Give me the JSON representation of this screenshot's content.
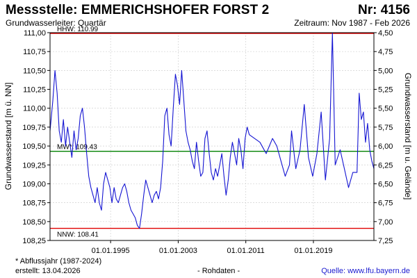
{
  "header": {
    "title": "Messstelle: EMMERICHSHOFER FORST 2",
    "nr": "Nr: 4156",
    "aquifer": "Grundwasserleiter: Quartär",
    "period": "Zeitraum: Nov 1987 - Feb 2026"
  },
  "footer": {
    "note": "* Abflussjahr (1987-2024)",
    "created": "erstellt:  13.04.2026",
    "raw": "- Rohdaten -",
    "source": "Quelle: www.lfu.bayern.de"
  },
  "colors": {
    "series": "#1414d2",
    "hhw": "#e00000",
    "mw": "#008000",
    "nnw": "#e00000",
    "grid": "#d0d0d0"
  },
  "chart_data": {
    "type": "line",
    "ylabel": "Grundwasserstand [m ü. NN]",
    "ylabel_right": "Grundwasserstand [m u. Gelände]",
    "ylim": [
      108.25,
      111.0
    ],
    "ylim_right": [
      7.25,
      4.5
    ],
    "xlim": [
      "1987-11-01",
      "2026-02-28"
    ],
    "grid": true,
    "yticks": [
      "108,25",
      "108,50",
      "108,75",
      "109,00",
      "109,25",
      "109,50",
      "109,75",
      "110,00",
      "110,25",
      "110,50",
      "110,75",
      "111,00"
    ],
    "yticks_right": [
      "4,50",
      "4,75",
      "5,00",
      "5,25",
      "5,50",
      "5,75",
      "6,00",
      "6,25",
      "6,50",
      "6,75",
      "7,00",
      "7,25"
    ],
    "xticks": [
      "01.01.1995",
      "01.01.2003",
      "01.01.2011",
      "01.01.2019"
    ],
    "reference_lines": [
      {
        "label": "HHW: 110.99",
        "value": 110.99,
        "kind": "hhw"
      },
      {
        "label": "MW*: 109.43",
        "value": 109.43,
        "kind": "mw"
      },
      {
        "label": "NNW: 108.41",
        "value": 108.41,
        "kind": "nnw"
      }
    ],
    "series": [
      {
        "points": [
          [
            "1987-11-01",
            109.7
          ],
          [
            "1988-03-01",
            110.1
          ],
          [
            "1988-06-01",
            110.5
          ],
          [
            "1988-09-01",
            110.2
          ],
          [
            "1988-12-01",
            109.7
          ],
          [
            "1989-03-01",
            109.55
          ],
          [
            "1989-06-01",
            109.85
          ],
          [
            "1989-09-01",
            109.5
          ],
          [
            "1989-12-01",
            109.75
          ],
          [
            "1990-03-01",
            109.55
          ],
          [
            "1990-06-01",
            109.35
          ],
          [
            "1990-09-01",
            109.7
          ],
          [
            "1990-12-01",
            109.45
          ],
          [
            "1991-03-01",
            109.6
          ],
          [
            "1991-06-01",
            109.9
          ],
          [
            "1991-09-01",
            110.0
          ],
          [
            "1991-12-01",
            109.75
          ],
          [
            "1992-03-01",
            109.4
          ],
          [
            "1992-06-01",
            109.1
          ],
          [
            "1992-09-01",
            108.95
          ],
          [
            "1992-12-01",
            108.85
          ],
          [
            "1993-03-01",
            108.75
          ],
          [
            "1993-06-01",
            108.95
          ],
          [
            "1993-09-01",
            108.75
          ],
          [
            "1993-12-01",
            108.65
          ],
          [
            "1994-03-01",
            109.0
          ],
          [
            "1994-06-01",
            109.15
          ],
          [
            "1994-09-01",
            109.05
          ],
          [
            "1994-12-01",
            108.95
          ],
          [
            "1995-03-01",
            108.75
          ],
          [
            "1995-06-01",
            108.95
          ],
          [
            "1995-09-01",
            108.8
          ],
          [
            "1995-12-01",
            108.75
          ],
          [
            "1996-03-01",
            108.85
          ],
          [
            "1996-06-01",
            108.95
          ],
          [
            "1996-09-01",
            109.0
          ],
          [
            "1996-12-01",
            108.9
          ],
          [
            "1997-03-01",
            108.75
          ],
          [
            "1997-06-01",
            108.65
          ],
          [
            "1997-09-01",
            108.6
          ],
          [
            "1997-12-01",
            108.55
          ],
          [
            "1998-03-01",
            108.45
          ],
          [
            "1998-06-01",
            108.41
          ],
          [
            "1998-09-01",
            108.6
          ],
          [
            "1998-12-01",
            108.85
          ],
          [
            "1999-03-01",
            109.05
          ],
          [
            "1999-06-01",
            108.95
          ],
          [
            "1999-09-01",
            108.85
          ],
          [
            "1999-12-01",
            108.75
          ],
          [
            "2000-03-01",
            108.85
          ],
          [
            "2000-06-01",
            108.9
          ],
          [
            "2000-09-01",
            108.8
          ],
          [
            "2000-12-01",
            108.95
          ],
          [
            "2001-03-01",
            109.3
          ],
          [
            "2001-06-01",
            109.9
          ],
          [
            "2001-09-01",
            110.0
          ],
          [
            "2001-12-01",
            109.65
          ],
          [
            "2002-03-01",
            109.5
          ],
          [
            "2002-06-01",
            110.0
          ],
          [
            "2002-09-01",
            110.45
          ],
          [
            "2002-12-01",
            110.3
          ],
          [
            "2003-03-01",
            110.05
          ],
          [
            "2003-06-01",
            110.5
          ],
          [
            "2003-09-01",
            110.1
          ],
          [
            "2003-12-01",
            109.7
          ],
          [
            "2004-03-01",
            109.55
          ],
          [
            "2004-06-01",
            109.45
          ],
          [
            "2004-09-01",
            109.3
          ],
          [
            "2004-12-01",
            109.2
          ],
          [
            "2005-03-01",
            109.55
          ],
          [
            "2005-06-01",
            109.3
          ],
          [
            "2005-09-01",
            109.1
          ],
          [
            "2005-12-01",
            109.15
          ],
          [
            "2006-03-01",
            109.6
          ],
          [
            "2006-06-01",
            109.7
          ],
          [
            "2006-09-01",
            109.4
          ],
          [
            "2006-12-01",
            109.15
          ],
          [
            "2007-03-01",
            109.05
          ],
          [
            "2007-06-01",
            109.2
          ],
          [
            "2007-09-01",
            109.1
          ],
          [
            "2007-12-01",
            109.25
          ],
          [
            "2008-03-01",
            109.4
          ],
          [
            "2008-06-01",
            109.1
          ],
          [
            "2008-09-01",
            108.85
          ],
          [
            "2008-12-01",
            109.05
          ],
          [
            "2009-03-01",
            109.35
          ],
          [
            "2009-06-01",
            109.55
          ],
          [
            "2009-09-01",
            109.4
          ],
          [
            "2009-12-01",
            109.25
          ],
          [
            "2010-03-01",
            109.6
          ],
          [
            "2010-06-01",
            109.45
          ],
          [
            "2010-09-01",
            109.2
          ],
          [
            "2010-12-01",
            109.6
          ],
          [
            "2011-03-01",
            109.75
          ],
          [
            "2011-06-01",
            109.65
          ],
          [
            "2012-09-01",
            109.55
          ],
          [
            "2013-06-01",
            109.4
          ],
          [
            "2014-03-01",
            109.6
          ],
          [
            "2014-09-01",
            109.5
          ],
          [
            "2015-03-01",
            109.3
          ],
          [
            "2015-09-01",
            109.1
          ],
          [
            "2016-03-01",
            109.25
          ],
          [
            "2016-06-01",
            109.7
          ],
          [
            "2016-12-01",
            109.2
          ],
          [
            "2017-06-01",
            109.45
          ],
          [
            "2017-12-01",
            110.05
          ],
          [
            "2018-06-01",
            109.35
          ],
          [
            "2018-12-01",
            109.1
          ],
          [
            "2019-06-01",
            109.4
          ],
          [
            "2019-12-01",
            109.95
          ],
          [
            "2020-06-01",
            109.05
          ],
          [
            "2020-12-01",
            109.6
          ],
          [
            "2021-04-01",
            111.0
          ],
          [
            "2021-08-01",
            109.25
          ],
          [
            "2022-03-01",
            109.45
          ],
          [
            "2022-09-01",
            109.2
          ],
          [
            "2023-03-01",
            108.95
          ],
          [
            "2023-09-01",
            109.15
          ],
          [
            "2024-03-01",
            109.15
          ],
          [
            "2024-06-01",
            110.2
          ],
          [
            "2024-09-01",
            109.85
          ],
          [
            "2024-12-01",
            109.95
          ],
          [
            "2025-03-01",
            109.55
          ],
          [
            "2025-06-01",
            109.8
          ],
          [
            "2025-09-01",
            109.45
          ],
          [
            "2025-12-01",
            109.3
          ],
          [
            "2026-02-28",
            109.2
          ]
        ]
      }
    ]
  }
}
